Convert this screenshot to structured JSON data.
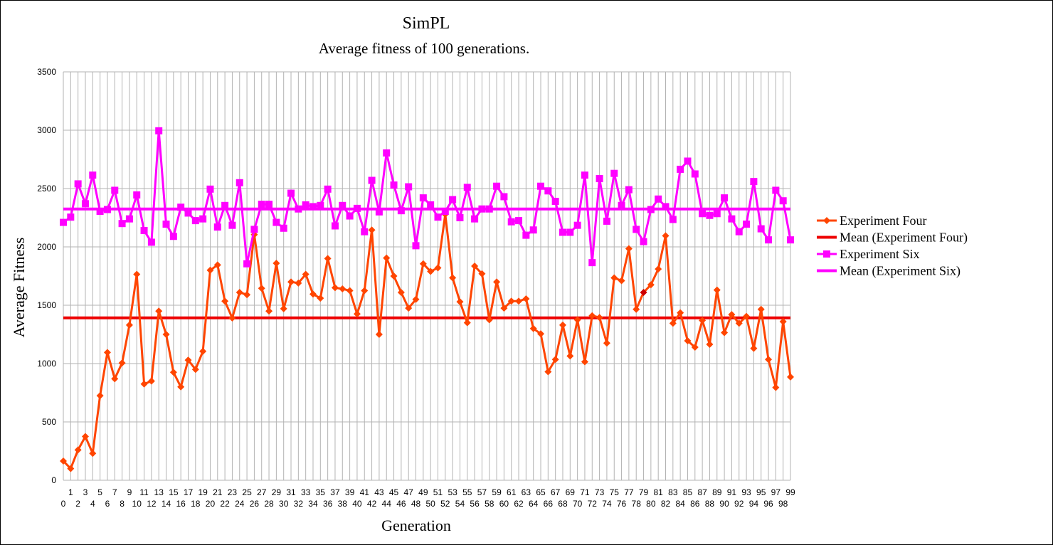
{
  "chart_data": {
    "type": "line",
    "title": "SimPL",
    "subtitle": "Average fitness of 100 generations.",
    "xlabel": "Generation",
    "ylabel": "Average Fitness",
    "ylim": [
      0,
      3500
    ],
    "yticks": [
      0,
      500,
      1000,
      1500,
      2000,
      2500,
      3000,
      3500
    ],
    "grid": true,
    "legend_position": "right",
    "x": [
      0,
      1,
      2,
      3,
      4,
      5,
      6,
      7,
      8,
      9,
      10,
      11,
      12,
      13,
      14,
      15,
      16,
      17,
      18,
      19,
      20,
      21,
      22,
      23,
      24,
      25,
      26,
      27,
      28,
      29,
      30,
      31,
      32,
      33,
      34,
      35,
      36,
      37,
      38,
      39,
      40,
      41,
      42,
      43,
      44,
      45,
      46,
      47,
      48,
      49,
      50,
      51,
      52,
      53,
      54,
      55,
      56,
      57,
      58,
      59,
      60,
      61,
      62,
      63,
      64,
      65,
      66,
      67,
      68,
      69,
      70,
      71,
      72,
      73,
      74,
      75,
      76,
      77,
      78,
      79,
      80,
      81,
      82,
      83,
      84,
      85,
      86,
      87,
      88,
      89,
      90,
      91,
      92,
      93,
      94,
      95,
      96,
      97,
      98,
      99
    ],
    "series": [
      {
        "name": "Experiment Four",
        "kind": "line-marker",
        "marker": "diamond",
        "color": "#ff4500",
        "values": [
          165,
          100,
          260,
          375,
          230,
          725,
          1095,
          870,
          1005,
          1330,
          1765,
          825,
          850,
          1450,
          1250,
          925,
          800,
          1030,
          950,
          1105,
          1800,
          1845,
          1535,
          1390,
          1610,
          1590,
          2105,
          1645,
          1450,
          1860,
          1470,
          1700,
          1690,
          1765,
          1595,
          1560,
          1900,
          1650,
          1640,
          1625,
          1425,
          1625,
          2145,
          1250,
          1905,
          1750,
          1610,
          1475,
          1550,
          1855,
          1790,
          1820,
          2280,
          1735,
          1530,
          1350,
          1835,
          1770,
          1375,
          1700,
          1475,
          1535,
          1535,
          1555,
          1300,
          1255,
          930,
          1035,
          1330,
          1065,
          1375,
          1015,
          1410,
          1395,
          1175,
          1735,
          1710,
          1985,
          1465,
          1610,
          1675,
          1810,
          2095,
          1345,
          1435,
          1195,
          1140,
          1370,
          1165,
          1630,
          1265,
          1420,
          1345,
          1405,
          1130,
          1465,
          1035,
          795,
          1360,
          885
        ]
      },
      {
        "name": "Mean (Experiment Four)",
        "kind": "mean-line",
        "color": "#ee0000",
        "value": 1392
      },
      {
        "name": "Experiment Six",
        "kind": "line-marker",
        "marker": "square",
        "color": "#ff00ff",
        "values": [
          2210,
          2255,
          2540,
          2370,
          2615,
          2305,
          2320,
          2485,
          2200,
          2240,
          2445,
          2140,
          2040,
          2995,
          2195,
          2090,
          2340,
          2290,
          2225,
          2240,
          2495,
          2170,
          2355,
          2185,
          2550,
          1855,
          2150,
          2365,
          2365,
          2210,
          2160,
          2460,
          2325,
          2360,
          2345,
          2355,
          2495,
          2180,
          2355,
          2265,
          2330,
          2130,
          2570,
          2300,
          2805,
          2530,
          2310,
          2515,
          2010,
          2420,
          2360,
          2255,
          2305,
          2405,
          2250,
          2510,
          2240,
          2325,
          2325,
          2520,
          2430,
          2215,
          2225,
          2100,
          2145,
          2520,
          2480,
          2390,
          2125,
          2125,
          2185,
          2615,
          1865,
          2585,
          2220,
          2630,
          2355,
          2490,
          2150,
          2045,
          2320,
          2410,
          2345,
          2235,
          2665,
          2735,
          2625,
          2285,
          2270,
          2285,
          2420,
          2240,
          2130,
          2195,
          2560,
          2155,
          2060,
          2485,
          2395,
          2060
        ]
      },
      {
        "name": "Mean (Experiment Six)",
        "kind": "mean-line",
        "color": "#ff00ff",
        "value": 2325
      }
    ],
    "highlight_point": {
      "series": 0,
      "index": 79,
      "color": "#cc0000"
    }
  }
}
